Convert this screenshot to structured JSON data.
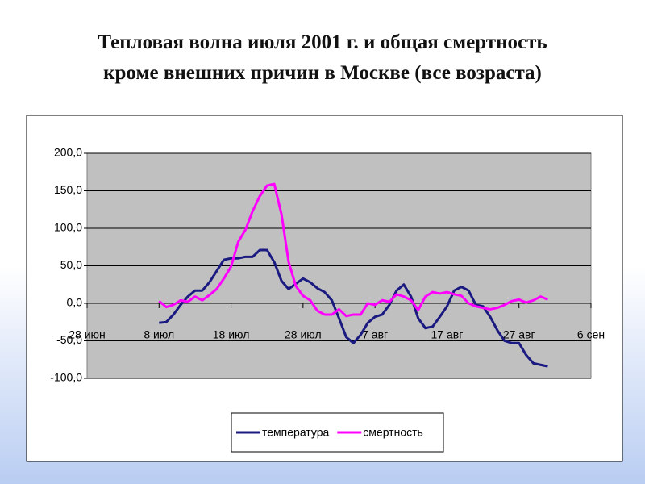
{
  "chart_data": {
    "type": "line",
    "title": [
      "Тепловая волна июля 2001 г. и общая смертность",
      "кроме внешних причин в Москве (все возраста)"
    ],
    "x": [
      10,
      11,
      12,
      13,
      14,
      15,
      16,
      17,
      18,
      19,
      20,
      21,
      22,
      23,
      24,
      25,
      26,
      27,
      28,
      29,
      30,
      31,
      32,
      33,
      34,
      35,
      36,
      37,
      38,
      39,
      40,
      41,
      42,
      43,
      44,
      45,
      46,
      47,
      48,
      49,
      50,
      51,
      52,
      53,
      54,
      55,
      56,
      57,
      58,
      59,
      60,
      61,
      62,
      63,
      64
    ],
    "series": [
      {
        "name": "температура",
        "color": "#1a1a80",
        "values": [
          -26,
          -25,
          -15,
          -2,
          9,
          17,
          17,
          28,
          43,
          58,
          60,
          60,
          62,
          62,
          71,
          71,
          55,
          30,
          19,
          26,
          33,
          28,
          20,
          15,
          4,
          -20,
          -45,
          -53,
          -42,
          -26,
          -18,
          -15,
          -2,
          17,
          25,
          9,
          -20,
          -33,
          -31,
          -18,
          -4,
          17,
          22,
          17,
          -2,
          -4,
          -18,
          -36,
          -50,
          -53,
          -53,
          -69,
          -80,
          -82,
          -84
        ]
      },
      {
        "name": "смертность",
        "color": "#ff00ff",
        "values": [
          3,
          -5,
          -2,
          4,
          2,
          9,
          4,
          11,
          19,
          33,
          49,
          82,
          98,
          123,
          143,
          157,
          159,
          119,
          55,
          23,
          10,
          4,
          -10,
          -15,
          -15,
          -8,
          -17,
          -15,
          -15,
          0,
          -2,
          4,
          2,
          12,
          9,
          4,
          -9,
          9,
          15,
          13,
          15,
          12,
          10,
          0,
          -4,
          -6,
          -8,
          -6,
          -2,
          3,
          5,
          1,
          4,
          9,
          5
        ]
      }
    ],
    "xlim": [
      0,
      70
    ],
    "xticks": [
      {
        "value": 0,
        "label": "28 июн"
      },
      {
        "value": 10,
        "label": "8 июл"
      },
      {
        "value": 20,
        "label": "18 июл"
      },
      {
        "value": 30,
        "label": "28 июл"
      },
      {
        "value": 40,
        "label": "7 авг"
      },
      {
        "value": 50,
        "label": "17 авг"
      },
      {
        "value": 60,
        "label": "27 авг"
      },
      {
        "value": 70,
        "label": "6 сен"
      }
    ],
    "ylim": [
      -100,
      200
    ],
    "yticks": [
      {
        "value": -100,
        "label": "-100,0"
      },
      {
        "value": -50,
        "label": "-50,0"
      },
      {
        "value": 0,
        "label": "0,0"
      },
      {
        "value": 50,
        "label": "50,0"
      },
      {
        "value": 100,
        "label": "100,0"
      },
      {
        "value": 150,
        "label": "150,0"
      },
      {
        "value": 200,
        "label": "200,0"
      }
    ],
    "grid": true,
    "legend": "bottom"
  }
}
